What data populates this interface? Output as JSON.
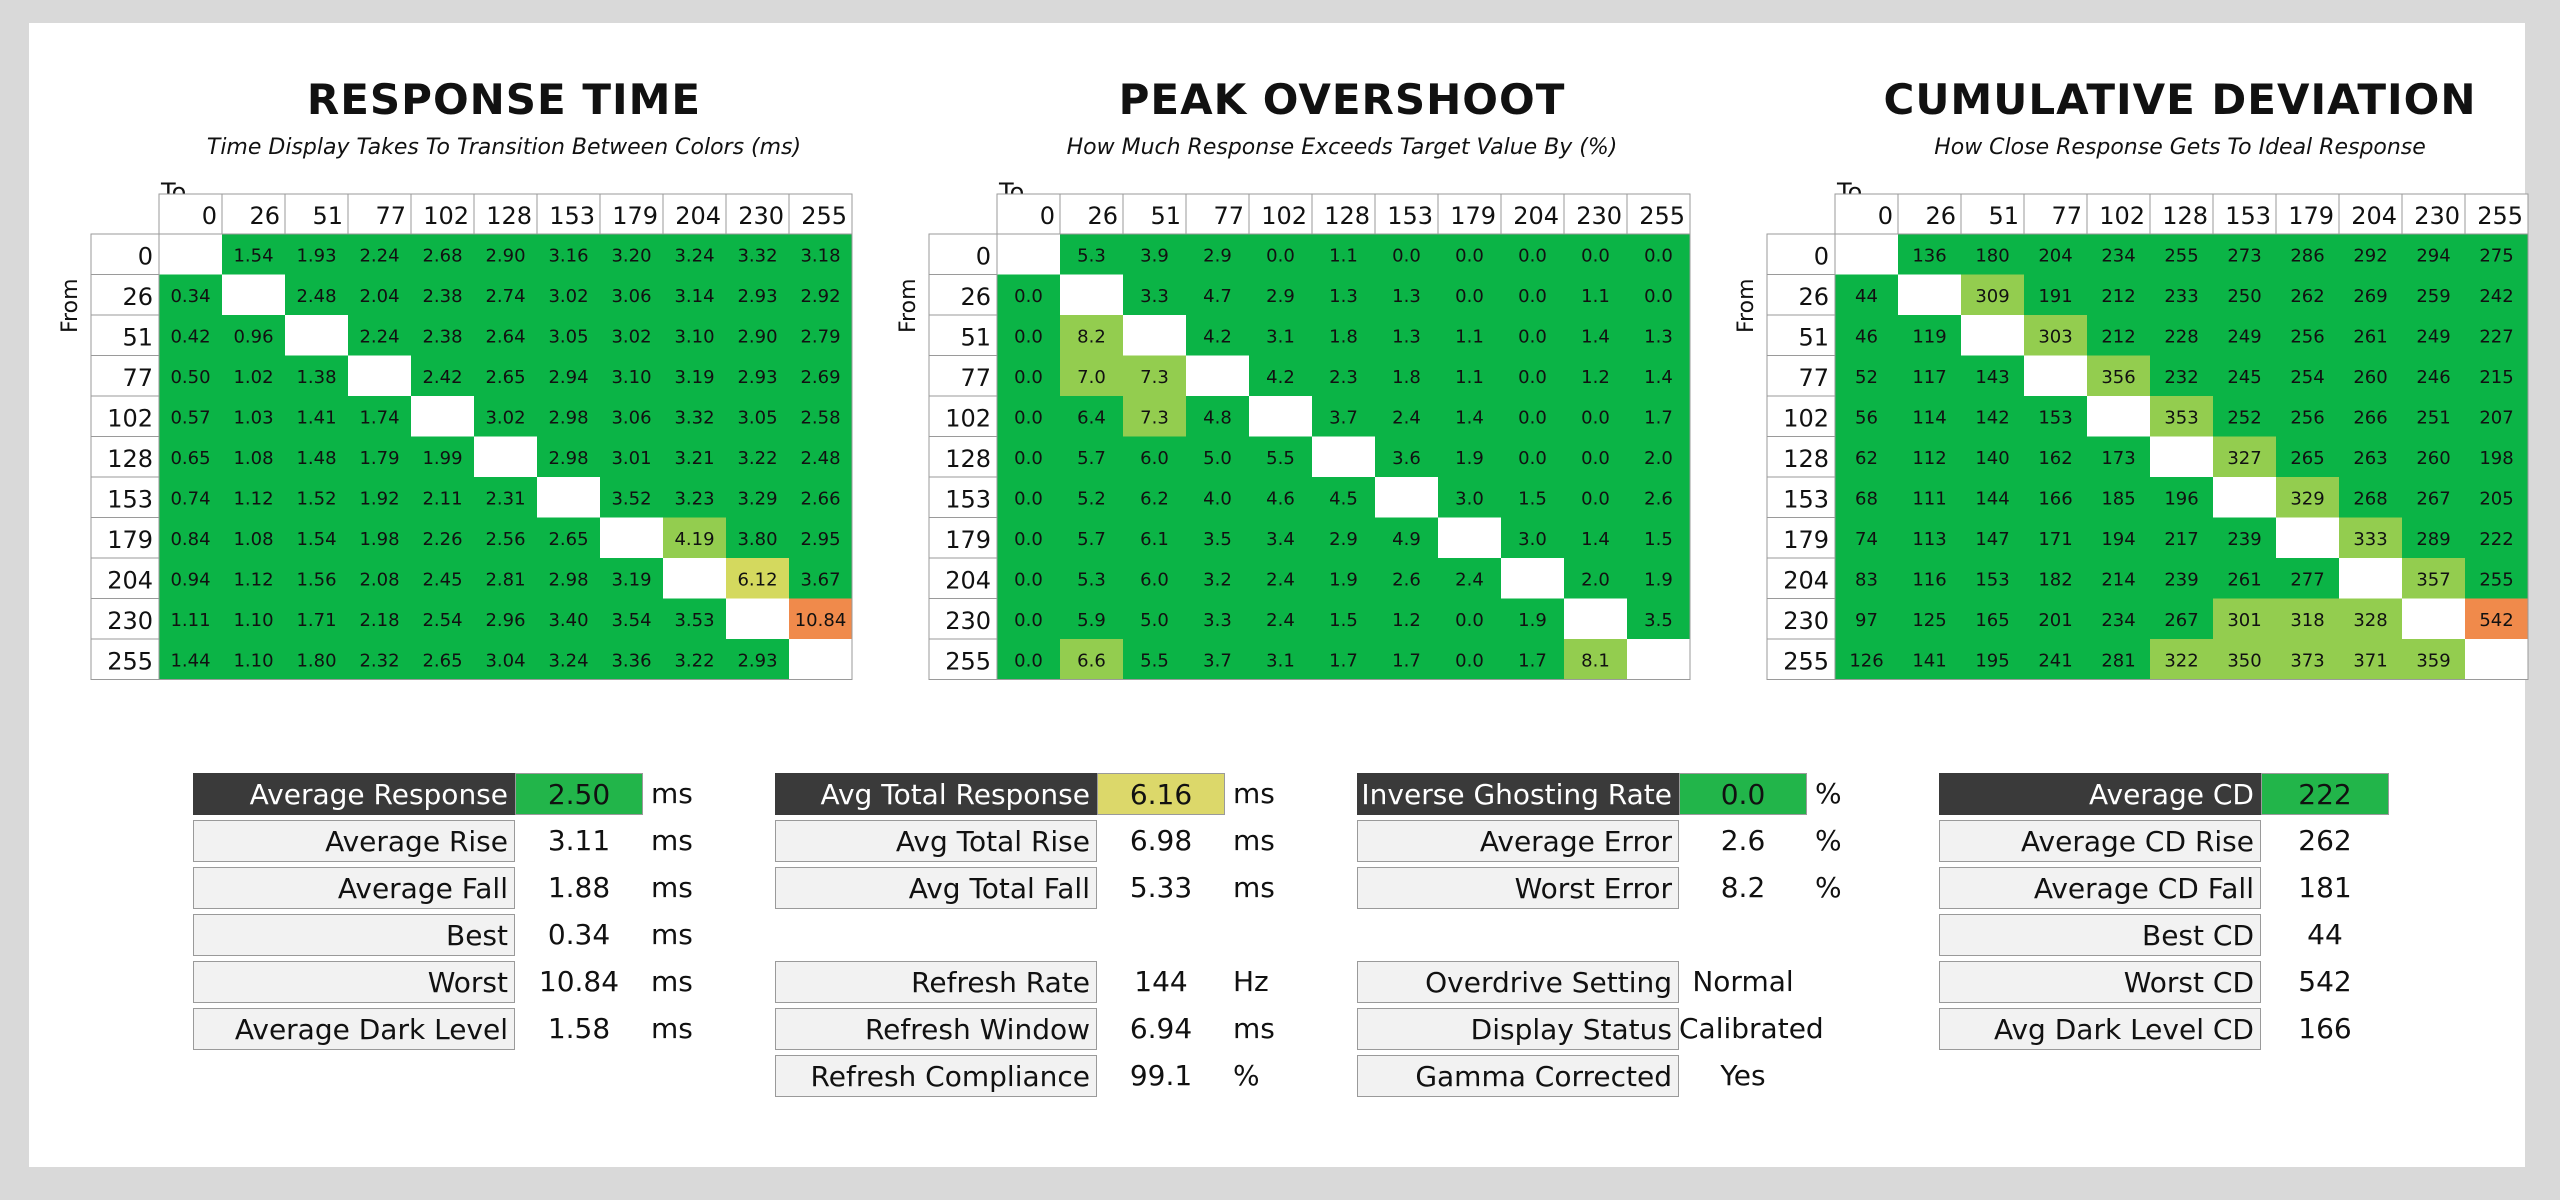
{
  "colors": {
    "cell_good": "#0bb446",
    "cell_mid": "#93cd4f",
    "cell_warn": "#d4d95e",
    "cell_bad": "#f08a4b",
    "highlight_green": "#22b54a",
    "highlight_yellow": "#dcd86a",
    "label_dark": "#3a3a3a",
    "label_light": "#f2f2f2"
  },
  "chart_data": [
    {
      "type": "heatmap",
      "title": "RESPONSE TIME",
      "subtitle": "Time Display Takes To Transition Between Colors (ms)",
      "xlabel": "To",
      "ylabel": "From",
      "x": [
        "0",
        "26",
        "51",
        "77",
        "102",
        "128",
        "153",
        "179",
        "204",
        "230",
        "255"
      ],
      "y": [
        "0",
        "26",
        "51",
        "77",
        "102",
        "128",
        "153",
        "179",
        "204",
        "230",
        "255"
      ],
      "values": [
        [
          "",
          "1.54",
          "1.93",
          "2.24",
          "2.68",
          "2.90",
          "3.16",
          "3.20",
          "3.24",
          "3.32",
          "3.18"
        ],
        [
          "0.34",
          "",
          "2.48",
          "2.04",
          "2.38",
          "2.74",
          "3.02",
          "3.06",
          "3.14",
          "2.93",
          "2.92"
        ],
        [
          "0.42",
          "0.96",
          "",
          "2.24",
          "2.38",
          "2.64",
          "3.05",
          "3.02",
          "3.10",
          "2.90",
          "2.79"
        ],
        [
          "0.50",
          "1.02",
          "1.38",
          "",
          "2.42",
          "2.65",
          "2.94",
          "3.10",
          "3.19",
          "2.93",
          "2.69"
        ],
        [
          "0.57",
          "1.03",
          "1.41",
          "1.74",
          "",
          "3.02",
          "2.98",
          "3.06",
          "3.32",
          "3.05",
          "2.58"
        ],
        [
          "0.65",
          "1.08",
          "1.48",
          "1.79",
          "1.99",
          "",
          "2.98",
          "3.01",
          "3.21",
          "3.22",
          "2.48"
        ],
        [
          "0.74",
          "1.12",
          "1.52",
          "1.92",
          "2.11",
          "2.31",
          "",
          "3.52",
          "3.23",
          "3.29",
          "2.66"
        ],
        [
          "0.84",
          "1.08",
          "1.54",
          "1.98",
          "2.26",
          "2.56",
          "2.65",
          "",
          "4.19",
          "3.80",
          "2.95"
        ],
        [
          "0.94",
          "1.12",
          "1.56",
          "2.08",
          "2.45",
          "2.81",
          "2.98",
          "3.19",
          "",
          "6.12",
          "3.67"
        ],
        [
          "1.11",
          "1.10",
          "1.71",
          "2.18",
          "2.54",
          "2.96",
          "3.40",
          "3.54",
          "3.53",
          "",
          "10.84"
        ],
        [
          "1.44",
          "1.10",
          "1.80",
          "2.32",
          "2.65",
          "3.04",
          "3.24",
          "3.36",
          "3.22",
          "2.93",
          ""
        ]
      ],
      "color_rules": {
        "mid": 4.0,
        "warn": 5.0,
        "bad": 8.0
      }
    },
    {
      "type": "heatmap",
      "title": "PEAK OVERSHOOT",
      "subtitle": "How Much Response Exceeds Target Value By (%)",
      "xlabel": "To",
      "ylabel": "From",
      "x": [
        "0",
        "26",
        "51",
        "77",
        "102",
        "128",
        "153",
        "179",
        "204",
        "230",
        "255"
      ],
      "y": [
        "0",
        "26",
        "51",
        "77",
        "102",
        "128",
        "153",
        "179",
        "204",
        "230",
        "255"
      ],
      "values": [
        [
          "",
          "5.3",
          "3.9",
          "2.9",
          "0.0",
          "1.1",
          "0.0",
          "0.0",
          "0.0",
          "0.0",
          "0.0"
        ],
        [
          "0.0",
          "",
          "3.3",
          "4.7",
          "2.9",
          "1.3",
          "1.3",
          "0.0",
          "0.0",
          "1.1",
          "0.0"
        ],
        [
          "0.0",
          "8.2",
          "",
          "4.2",
          "3.1",
          "1.8",
          "1.3",
          "1.1",
          "0.0",
          "1.4",
          "1.3"
        ],
        [
          "0.0",
          "7.0",
          "7.3",
          "",
          "4.2",
          "2.3",
          "1.8",
          "1.1",
          "0.0",
          "1.2",
          "1.4"
        ],
        [
          "0.0",
          "6.4",
          "7.3",
          "4.8",
          "",
          "3.7",
          "2.4",
          "1.4",
          "0.0",
          "0.0",
          "1.7"
        ],
        [
          "0.0",
          "5.7",
          "6.0",
          "5.0",
          "5.5",
          "",
          "3.6",
          "1.9",
          "0.0",
          "0.0",
          "2.0"
        ],
        [
          "0.0",
          "5.2",
          "6.2",
          "4.0",
          "4.6",
          "4.5",
          "",
          "3.0",
          "1.5",
          "0.0",
          "2.6"
        ],
        [
          "0.0",
          "5.7",
          "6.1",
          "3.5",
          "3.4",
          "2.9",
          "4.9",
          "",
          "3.0",
          "1.4",
          "1.5"
        ],
        [
          "0.0",
          "5.3",
          "6.0",
          "3.2",
          "2.4",
          "1.9",
          "2.6",
          "2.4",
          "",
          "2.0",
          "1.9"
        ],
        [
          "0.0",
          "5.9",
          "5.0",
          "3.3",
          "2.4",
          "1.5",
          "1.2",
          "0.0",
          "1.9",
          "",
          "3.5"
        ],
        [
          "0.0",
          "6.6",
          "5.5",
          "3.7",
          "3.1",
          "1.7",
          "1.7",
          "0.0",
          "1.7",
          "8.1",
          ""
        ]
      ],
      "color_rules": {
        "mid": 6.5,
        "warn": 12.0,
        "bad": 20.0
      }
    },
    {
      "type": "heatmap",
      "title": "CUMULATIVE DEVIATION",
      "subtitle": "How Close Response Gets To Ideal Response",
      "xlabel": "To",
      "ylabel": "From",
      "x": [
        "0",
        "26",
        "51",
        "77",
        "102",
        "128",
        "153",
        "179",
        "204",
        "230",
        "255"
      ],
      "y": [
        "0",
        "26",
        "51",
        "77",
        "102",
        "128",
        "153",
        "179",
        "204",
        "230",
        "255"
      ],
      "values": [
        [
          "",
          "136",
          "180",
          "204",
          "234",
          "255",
          "273",
          "286",
          "292",
          "294",
          "275"
        ],
        [
          "44",
          "",
          "309",
          "191",
          "212",
          "233",
          "250",
          "262",
          "269",
          "259",
          "242"
        ],
        [
          "46",
          "119",
          "",
          "303",
          "212",
          "228",
          "249",
          "256",
          "261",
          "249",
          "227"
        ],
        [
          "52",
          "117",
          "143",
          "",
          "356",
          "232",
          "245",
          "254",
          "260",
          "246",
          "215"
        ],
        [
          "56",
          "114",
          "142",
          "153",
          "",
          "353",
          "252",
          "256",
          "266",
          "251",
          "207"
        ],
        [
          "62",
          "112",
          "140",
          "162",
          "173",
          "",
          "327",
          "265",
          "263",
          "260",
          "198"
        ],
        [
          "68",
          "111",
          "144",
          "166",
          "185",
          "196",
          "",
          "329",
          "268",
          "267",
          "205"
        ],
        [
          "74",
          "113",
          "147",
          "171",
          "194",
          "217",
          "239",
          "",
          "333",
          "289",
          "222"
        ],
        [
          "83",
          "116",
          "153",
          "182",
          "214",
          "239",
          "261",
          "277",
          "",
          "357",
          "255"
        ],
        [
          "97",
          "125",
          "165",
          "201",
          "234",
          "267",
          "301",
          "318",
          "328",
          "",
          "542"
        ],
        [
          "126",
          "141",
          "195",
          "241",
          "281",
          "322",
          "350",
          "373",
          "371",
          "359",
          ""
        ]
      ],
      "color_rules": {
        "mid": 300,
        "warn": 400,
        "bad": 500
      }
    }
  ],
  "stats": [
    {
      "rows": [
        {
          "label": "Average Response",
          "value": "2.50",
          "unit": "ms",
          "head": true,
          "highlight": "green"
        },
        {
          "label": "Average Rise",
          "value": "3.11",
          "unit": "ms"
        },
        {
          "label": "Average Fall",
          "value": "1.88",
          "unit": "ms"
        },
        {
          "label": "Best",
          "value": "0.34",
          "unit": "ms"
        },
        {
          "label": "Worst",
          "value": "10.84",
          "unit": "ms"
        },
        {
          "label": "Average Dark Level",
          "value": "1.58",
          "unit": "ms"
        }
      ]
    },
    {
      "rows": [
        {
          "label": "Avg Total Response",
          "value": "6.16",
          "unit": "ms",
          "head": true,
          "highlight": "yellow"
        },
        {
          "label": "Avg Total Rise",
          "value": "6.98",
          "unit": "ms"
        },
        {
          "label": "Avg Total Fall",
          "value": "5.33",
          "unit": "ms"
        },
        {
          "label": "",
          "value": "",
          "unit": "",
          "spacer": true
        },
        {
          "label": "Refresh Rate",
          "value": "144",
          "unit": "Hz"
        },
        {
          "label": "Refresh Window",
          "value": "6.94",
          "unit": "ms"
        },
        {
          "label": "Refresh Compliance",
          "value": "99.1",
          "unit": "%"
        }
      ]
    },
    {
      "rows": [
        {
          "label": "Inverse Ghosting Rate",
          "value": "0.0",
          "unit": "%",
          "head": true,
          "highlight": "green"
        },
        {
          "label": "Average Error",
          "value": "2.6",
          "unit": "%"
        },
        {
          "label": "Worst Error",
          "value": "8.2",
          "unit": "%"
        },
        {
          "label": "",
          "value": "",
          "unit": "",
          "spacer": true
        },
        {
          "label": "Overdrive Setting",
          "value": "Normal",
          "unit": ""
        },
        {
          "label": "Display Status",
          "value": "Calibrated",
          "unit": ""
        },
        {
          "label": "Gamma Corrected",
          "value": "Yes",
          "unit": ""
        }
      ]
    },
    {
      "rows": [
        {
          "label": "Average CD",
          "value": "222",
          "unit": "",
          "head": true,
          "highlight": "green"
        },
        {
          "label": "Average CD Rise",
          "value": "262",
          "unit": ""
        },
        {
          "label": "Average CD Fall",
          "value": "181",
          "unit": ""
        },
        {
          "label": "Best CD",
          "value": "44",
          "unit": ""
        },
        {
          "label": "Worst CD",
          "value": "542",
          "unit": ""
        },
        {
          "label": "Avg Dark Level CD",
          "value": "166",
          "unit": ""
        }
      ]
    }
  ]
}
